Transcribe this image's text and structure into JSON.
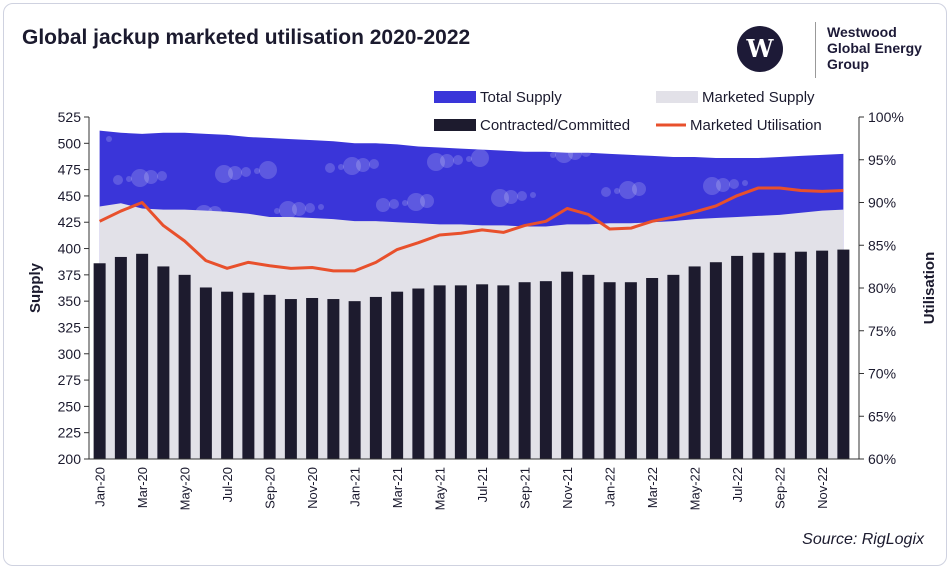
{
  "chart_data": {
    "type": "bar",
    "title": "Global jackup marketed utilisation 2020-2022",
    "ylabel": "Supply",
    "y2label": "Utilisation",
    "ylim": [
      200,
      525
    ],
    "y2lim": [
      60,
      100
    ],
    "yticks": [
      200,
      225,
      250,
      275,
      300,
      325,
      350,
      375,
      400,
      425,
      450,
      475,
      500,
      525
    ],
    "y2ticks": [
      "60%",
      "65%",
      "70%",
      "75%",
      "80%",
      "85%",
      "90%",
      "95%",
      "100%"
    ],
    "legend": "top",
    "categories": [
      "Jan-20",
      "Feb-20",
      "Mar-20",
      "Apr-20",
      "May-20",
      "Jun-20",
      "Jul-20",
      "Aug-20",
      "Sep-20",
      "Oct-20",
      "Nov-20",
      "Dec-20",
      "Jan-21",
      "Feb-21",
      "Mar-21",
      "Apr-21",
      "May-21",
      "Jun-21",
      "Jul-21",
      "Aug-21",
      "Sep-21",
      "Oct-21",
      "Nov-21",
      "Dec-21",
      "Jan-22",
      "Feb-22",
      "Mar-22",
      "Apr-22",
      "May-22",
      "Jun-22",
      "Jul-22",
      "Aug-22",
      "Sep-22",
      "Oct-22",
      "Nov-22",
      "Dec-22"
    ],
    "series": [
      {
        "name": "Total Supply",
        "type": "area",
        "color": "#3a35d9",
        "values": [
          512,
          510,
          509,
          510,
          510,
          509,
          508,
          506,
          505,
          504,
          503,
          502,
          500,
          500,
          499,
          497,
          496,
          495,
          494,
          493,
          492,
          492,
          491,
          491,
          490,
          489,
          488,
          487,
          487,
          486,
          486,
          486,
          487,
          488,
          489,
          490
        ]
      },
      {
        "name": "Marketed Supply",
        "type": "area",
        "color": "#e2e1e8",
        "values": [
          440,
          443,
          438,
          437,
          437,
          436,
          435,
          433,
          430,
          430,
          429,
          428,
          426,
          426,
          425,
          424,
          423,
          423,
          422,
          422,
          421,
          421,
          423,
          423,
          424,
          424,
          425,
          426,
          428,
          429,
          430,
          431,
          432,
          434,
          436,
          437
        ]
      },
      {
        "name": "Contracted/Committed",
        "type": "bar",
        "color": "#1d1b2e",
        "values": [
          386,
          392,
          395,
          383,
          375,
          363,
          359,
          358,
          356,
          352,
          353,
          352,
          350,
          354,
          359,
          362,
          365,
          365,
          366,
          365,
          368,
          369,
          378,
          375,
          368,
          368,
          372,
          375,
          383,
          387,
          393,
          396,
          396,
          397,
          398,
          399
        ]
      },
      {
        "name": "Marketed Utilisation",
        "type": "line",
        "axis": "right",
        "color": "#e8502c",
        "values": [
          87.8,
          89,
          90,
          87.3,
          85.5,
          83.2,
          82.3,
          83,
          82.6,
          82.3,
          82.4,
          82,
          82,
          83,
          84.5,
          85.3,
          86.2,
          86.4,
          86.8,
          86.5,
          87.3,
          87.8,
          89.3,
          88.6,
          86.9,
          87,
          87.8,
          88.3,
          88.9,
          89.6,
          90.8,
          91.7,
          91.7,
          91.4,
          91.3,
          91.4
        ]
      }
    ],
    "xtick_labels": [
      "Jan-20",
      "Mar-20",
      "May-20",
      "Jul-20",
      "Sep-20",
      "Nov-20",
      "Jan-21",
      "Mar-21",
      "May-21",
      "Jul-21",
      "Sep-21",
      "Nov-21",
      "Jan-22",
      "Mar-22",
      "May-22",
      "Jul-22",
      "Sep-22",
      "Nov-22"
    ]
  },
  "logo": {
    "mark": "W",
    "text": "Westwood Global Energy Group"
  },
  "source": "Source: RigLogix"
}
